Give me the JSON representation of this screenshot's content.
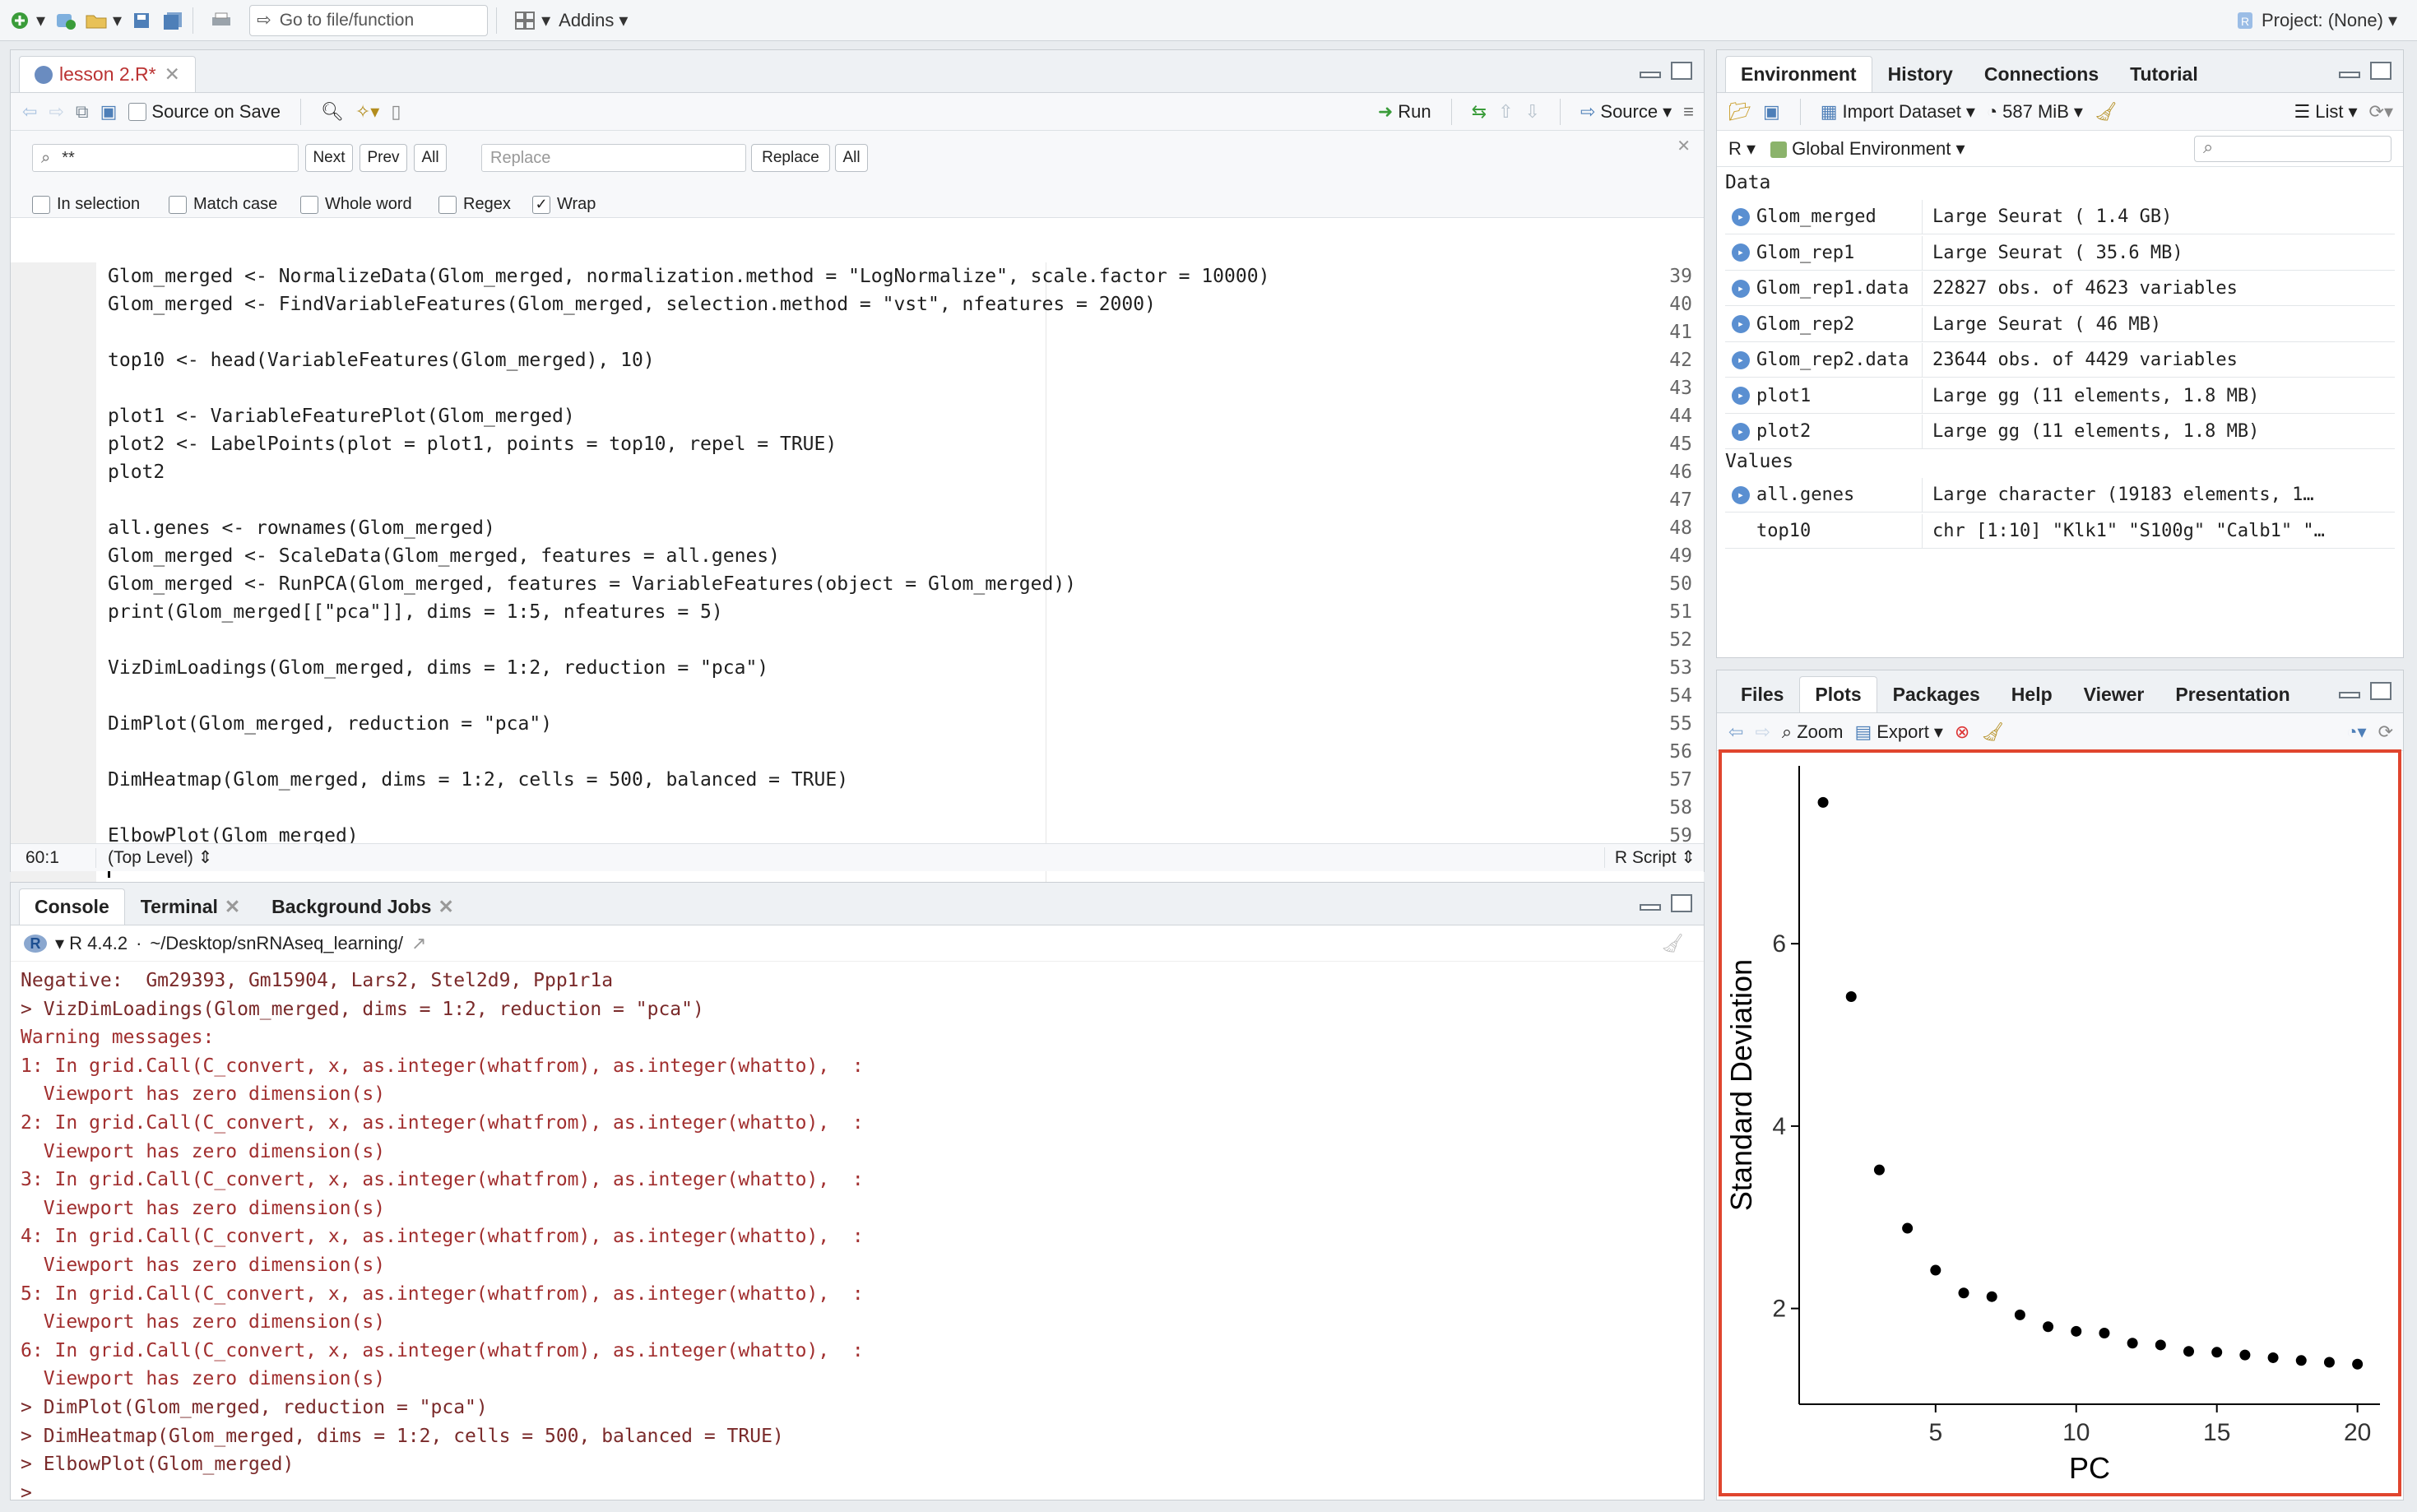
{
  "topbar": {
    "goto_placeholder": "Go to file/function",
    "addins_label": "Addins",
    "project_label": "Project: (None)"
  },
  "editor": {
    "tab_label": "lesson 2.R*",
    "source_on_save": "Source on Save",
    "run_label": "Run",
    "source_label": "Source",
    "find": {
      "search_value": "**",
      "next": "Next",
      "prev": "Prev",
      "all": "All",
      "replace_placeholder": "Replace",
      "replace_btn": "Replace",
      "replace_all": "All",
      "options": [
        "In selection",
        "Match case",
        "Whole word",
        "Regex",
        "Wrap"
      ]
    },
    "lines": [
      {
        "num": "39",
        "text": "Glom_merged <- NormalizeData(Glom_merged, normalization.method = \"LogNormalize\", scale.factor = 10000)"
      },
      {
        "num": "40",
        "text": "Glom_merged <- FindVariableFeatures(Glom_merged, selection.method = \"vst\", nfeatures = 2000)"
      },
      {
        "num": "41",
        "text": ""
      },
      {
        "num": "42",
        "text": "top10 <- head(VariableFeatures(Glom_merged), 10)"
      },
      {
        "num": "43",
        "text": ""
      },
      {
        "num": "44",
        "text": "plot1 <- VariableFeaturePlot(Glom_merged)"
      },
      {
        "num": "45",
        "text": "plot2 <- LabelPoints(plot = plot1, points = top10, repel = TRUE)"
      },
      {
        "num": "46",
        "text": "plot2"
      },
      {
        "num": "47",
        "text": ""
      },
      {
        "num": "48",
        "text": "all.genes <- rownames(Glom_merged)"
      },
      {
        "num": "49",
        "text": "Glom_merged <- ScaleData(Glom_merged, features = all.genes)"
      },
      {
        "num": "50",
        "text": "Glom_merged <- RunPCA(Glom_merged, features = VariableFeatures(object = Glom_merged))"
      },
      {
        "num": "51",
        "text": "print(Glom_merged[[\"pca\"]], dims = 1:5, nfeatures = 5)"
      },
      {
        "num": "52",
        "text": ""
      },
      {
        "num": "53",
        "text": "VizDimLoadings(Glom_merged, dims = 1:2, reduction = \"pca\")"
      },
      {
        "num": "54",
        "text": ""
      },
      {
        "num": "55",
        "text": "DimPlot(Glom_merged, reduction = \"pca\")"
      },
      {
        "num": "56",
        "text": ""
      },
      {
        "num": "57",
        "text": "DimHeatmap(Glom_merged, dims = 1:2, cells = 500, balanced = TRUE)"
      },
      {
        "num": "58",
        "text": ""
      },
      {
        "num": "59",
        "text": "ElbowPlot(Glom_merged)"
      },
      {
        "num": "60",
        "text": ""
      }
    ],
    "status_pos": "60:1",
    "status_scope": "(Top Level)",
    "status_type": "R Script"
  },
  "console": {
    "tabs": [
      "Console",
      "Terminal",
      "Background Jobs"
    ],
    "r_version": "R 4.4.2",
    "path": "~/Desktop/snRNAseq_learning/",
    "lines": [
      {
        "text": "Negative:  Gm29393, Gm15904, Lars2, Stel2d9, Ppp1r1a",
        "cls": "cmd"
      },
      {
        "text": "> VizDimLoadings(Glom_merged, dims = 1:2, reduction = \"pca\")",
        "cls": "cmd"
      },
      {
        "text": "Warning messages:",
        "cls": "err"
      },
      {
        "text": "1: In grid.Call(C_convert, x, as.integer(whatfrom), as.integer(whatto),  :",
        "cls": "err"
      },
      {
        "text": "  Viewport has zero dimension(s)",
        "cls": "err"
      },
      {
        "text": "2: In grid.Call(C_convert, x, as.integer(whatfrom), as.integer(whatto),  :",
        "cls": "err"
      },
      {
        "text": "  Viewport has zero dimension(s)",
        "cls": "err"
      },
      {
        "text": "3: In grid.Call(C_convert, x, as.integer(whatfrom), as.integer(whatto),  :",
        "cls": "err"
      },
      {
        "text": "  Viewport has zero dimension(s)",
        "cls": "err"
      },
      {
        "text": "4: In grid.Call(C_convert, x, as.integer(whatfrom), as.integer(whatto),  :",
        "cls": "err"
      },
      {
        "text": "  Viewport has zero dimension(s)",
        "cls": "err"
      },
      {
        "text": "5: In grid.Call(C_convert, x, as.integer(whatfrom), as.integer(whatto),  :",
        "cls": "err"
      },
      {
        "text": "  Viewport has zero dimension(s)",
        "cls": "err"
      },
      {
        "text": "6: In grid.Call(C_convert, x, as.integer(whatfrom), as.integer(whatto),  :",
        "cls": "err"
      },
      {
        "text": "  Viewport has zero dimension(s)",
        "cls": "err"
      },
      {
        "text": "> DimPlot(Glom_merged, reduction = \"pca\")",
        "cls": "cmd"
      },
      {
        "text": "> DimHeatmap(Glom_merged, dims = 1:2, cells = 500, balanced = TRUE)",
        "cls": "cmd"
      },
      {
        "text": "> ElbowPlot(Glom_merged)",
        "cls": "cmd"
      },
      {
        "text": "> ",
        "cls": "cmd"
      }
    ]
  },
  "environment": {
    "tabs": [
      "Environment",
      "History",
      "Connections",
      "Tutorial"
    ],
    "import_label": "Import Dataset",
    "memory": "587 MiB",
    "list_label": "List",
    "lang": "R",
    "scope": "Global Environment",
    "data_header": "Data",
    "values_header": "Values",
    "data": [
      {
        "name": "Glom_merged",
        "value": "Large Seurat ( 1.4 GB)"
      },
      {
        "name": "Glom_rep1",
        "value": "Large Seurat ( 35.6 MB)"
      },
      {
        "name": "Glom_rep1.data",
        "value": "22827 obs. of 4623 variables"
      },
      {
        "name": "Glom_rep2",
        "value": "Large Seurat ( 46 MB)"
      },
      {
        "name": "Glom_rep2.data",
        "value": "23644 obs. of 4429 variables"
      },
      {
        "name": "plot1",
        "value": "Large gg (11 elements,  1.8 MB)"
      },
      {
        "name": "plot2",
        "value": "Large gg (11 elements,  1.8 MB)"
      }
    ],
    "values": [
      {
        "name": "all.genes",
        "value": "Large character (19183 elements,  1…"
      },
      {
        "name": "top10",
        "value": "chr [1:10] \"Klk1\" \"S100g\" \"Calb1\" \"…"
      }
    ]
  },
  "files": {
    "tabs": [
      "Files",
      "Plots",
      "Packages",
      "Help",
      "Viewer",
      "Presentation"
    ],
    "zoom_label": "Zoom",
    "export_label": "Export"
  },
  "chart_data": {
    "type": "scatter",
    "xlabel": "PC",
    "ylabel": "Standard Deviation",
    "x": [
      1,
      2,
      3,
      4,
      5,
      6,
      7,
      8,
      9,
      10,
      11,
      12,
      13,
      14,
      15,
      16,
      17,
      18,
      19,
      20
    ],
    "y": [
      7.55,
      5.42,
      3.52,
      2.88,
      2.42,
      2.17,
      2.13,
      1.93,
      1.8,
      1.75,
      1.73,
      1.62,
      1.6,
      1.53,
      1.52,
      1.49,
      1.46,
      1.43,
      1.41,
      1.39
    ],
    "xticks": [
      5,
      10,
      15,
      20
    ],
    "yticks": [
      2,
      4,
      6
    ],
    "xlim": [
      0.15,
      20.8
    ],
    "ylim": [
      0.95,
      7.95
    ]
  }
}
